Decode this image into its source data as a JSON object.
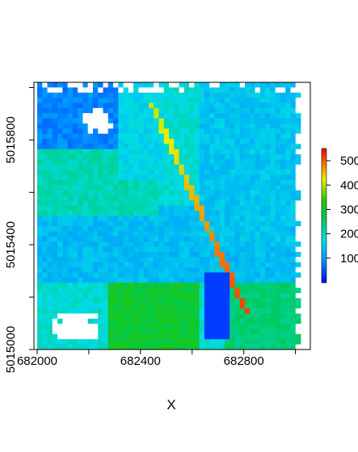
{
  "chart_data": {
    "type": "heatmap",
    "title": "",
    "xlabel": "X",
    "ylabel": "",
    "xlim": [
      682000,
      683020
    ],
    "ylim": [
      5015000,
      5016020
    ],
    "x_ticks": [
      682000,
      682200,
      682400,
      682600,
      682800,
      683000
    ],
    "x_tick_labels": [
      "682000",
      "682400",
      "682800"
    ],
    "x_tick_label_values": [
      682000,
      682400,
      682800
    ],
    "y_ticks": [
      5015000,
      5015200,
      5015400,
      5015600,
      5015800,
      5016000
    ],
    "y_tick_labels": [
      "5015000",
      "5015400",
      "5015800"
    ],
    "y_tick_label_values": [
      5015000,
      5015400,
      5015800
    ],
    "legend": {
      "position": "right",
      "range": [
        0,
        550
      ],
      "ticks": [
        100,
        200,
        300,
        400,
        500
      ],
      "tick_labels": [
        "100",
        "200",
        "300",
        "400",
        "500"
      ]
    },
    "colors": {
      "low": "#0000FF",
      "mid_low": "#00C8FF",
      "mid": "#00C800",
      "mid_high": "#FFFF00",
      "high": "#FF0000",
      "na": "#FFFFFF"
    },
    "grid": false
  }
}
